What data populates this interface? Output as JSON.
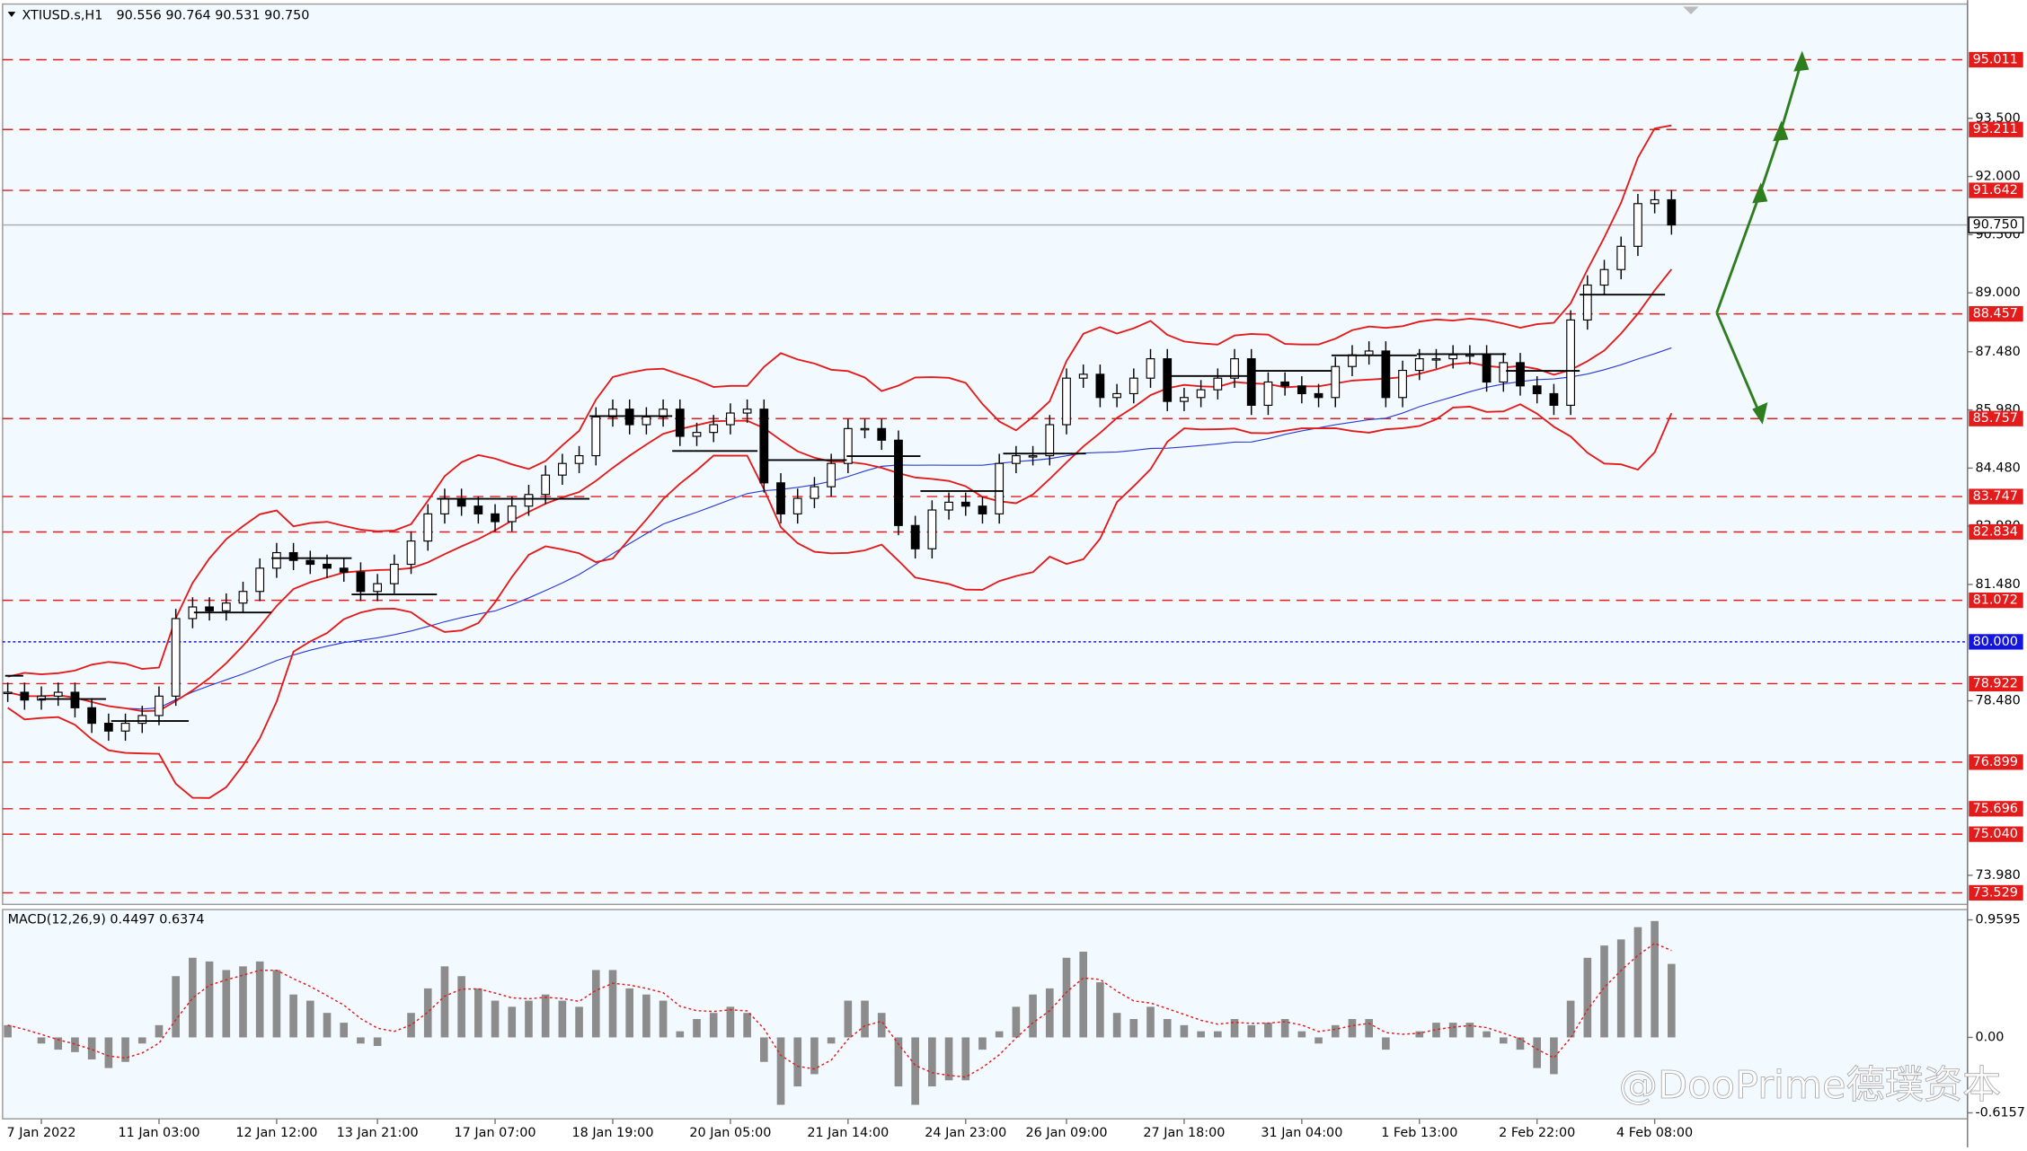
{
  "chart_data": {
    "type": "candlestick",
    "title": "XTIUSD.s,H1",
    "ohlc_label": "90.556 90.764 90.531 90.750",
    "categories": [
      null,
      null,
      "7 Jan 2022",
      null,
      null,
      null,
      null,
      null,
      null,
      "11 Jan 03:00",
      null,
      null,
      null,
      null,
      null,
      null,
      "12 Jan 12:00",
      null,
      null,
      null,
      null,
      null,
      "13 Jan 21:00",
      null,
      null,
      null,
      null,
      null,
      null,
      "17 Jan 07:00",
      null,
      null,
      null,
      null,
      null,
      null,
      "18 Jan 19:00",
      null,
      null,
      null,
      null,
      null,
      null,
      "20 Jan 05:00",
      null,
      null,
      null,
      null,
      null,
      null,
      "21 Jan 14:00",
      null,
      null,
      null,
      null,
      null,
      null,
      "24 Jan 23:00",
      null,
      null,
      null,
      null,
      null,
      "26 Jan 09:00",
      null,
      null,
      null,
      null,
      null,
      null,
      "27 Jan 18:00",
      null,
      null,
      null,
      null,
      null,
      null,
      "31 Jan 04:00",
      null,
      null,
      null,
      null,
      null,
      null,
      "1 Feb 13:00",
      null,
      null,
      null,
      null,
      null,
      null,
      "2 Feb 22:00",
      null,
      null,
      null,
      null,
      null,
      null,
      "4 Feb 08:00",
      null
    ],
    "values": [
      78.7,
      78.5,
      78.6,
      78.7,
      78.3,
      77.9,
      77.7,
      77.9,
      78.1,
      78.6,
      80.6,
      80.9,
      80.8,
      81.0,
      81.3,
      81.9,
      82.3,
      82.1,
      82.0,
      81.9,
      81.8,
      81.3,
      81.5,
      82.0,
      82.6,
      83.3,
      83.7,
      83.5,
      83.3,
      83.1,
      83.5,
      83.8,
      84.3,
      84.6,
      84.8,
      85.8,
      86.0,
      85.6,
      85.8,
      86.0,
      85.3,
      85.4,
      85.6,
      85.9,
      86.0,
      84.1,
      83.3,
      83.7,
      84.0,
      84.6,
      85.5,
      85.5,
      85.2,
      83.0,
      82.4,
      83.4,
      83.6,
      83.5,
      83.3,
      84.6,
      84.8,
      84.8,
      85.6,
      86.8,
      86.9,
      86.3,
      86.4,
      86.8,
      87.3,
      86.2,
      86.3,
      86.5,
      86.8,
      87.3,
      86.1,
      86.7,
      86.6,
      86.4,
      86.3,
      87.1,
      87.4,
      87.5,
      86.3,
      87.0,
      87.3,
      87.3,
      87.4,
      87.4,
      86.7,
      87.2,
      86.6,
      86.4,
      86.1,
      88.3,
      89.2,
      89.6,
      90.2,
      91.3,
      91.4,
      90.75
    ],
    "ylim": [
      73.23,
      96.38
    ],
    "yticks": [
      {
        "value": 93.5,
        "label": "93.500"
      },
      {
        "value": 92.0,
        "label": "92.000"
      },
      {
        "value": 90.5,
        "label": "90.500"
      },
      {
        "value": 89.0,
        "label": "89.000"
      },
      {
        "value": 87.48,
        "label": "87.480"
      },
      {
        "value": 85.98,
        "label": "85.980"
      },
      {
        "value": 84.48,
        "label": "84.480"
      },
      {
        "value": 82.98,
        "label": "82.980"
      },
      {
        "value": 81.48,
        "label": "81.480"
      },
      {
        "value": 78.48,
        "label": "78.480"
      },
      {
        "value": 73.98,
        "label": "73.980"
      }
    ],
    "levels": [
      {
        "value": 95.011,
        "label": "95.011"
      },
      {
        "value": 93.211,
        "label": "93.211"
      },
      {
        "value": 91.642,
        "label": "91.642"
      },
      {
        "value": 88.457,
        "label": "88.457"
      },
      {
        "value": 85.757,
        "label": "85.757"
      },
      {
        "value": 83.747,
        "label": "83.747"
      },
      {
        "value": 82.834,
        "label": "82.834"
      },
      {
        "value": 81.072,
        "label": "81.072"
      },
      {
        "value": 78.922,
        "label": "78.922"
      },
      {
        "value": 76.899,
        "label": "76.899"
      },
      {
        "value": 75.696,
        "label": "75.696"
      },
      {
        "value": 75.04,
        "label": "75.040"
      },
      {
        "value": 73.529,
        "label": "73.529"
      }
    ],
    "level_color": "#e31b1b",
    "round_level": {
      "value": 80.0,
      "label": "80.000",
      "color": "#1515e0"
    },
    "last_price": {
      "value": 90.75,
      "label": "90.750"
    },
    "macd": {
      "title": "MACD(12,26,9) 0.4497 0.6374",
      "color": "#8c8c8c",
      "values": [
        0.1,
        0.0,
        -0.05,
        -0.1,
        -0.12,
        -0.18,
        -0.25,
        -0.2,
        -0.05,
        0.1,
        0.5,
        0.65,
        0.62,
        0.55,
        0.58,
        0.62,
        0.55,
        0.35,
        0.3,
        0.2,
        0.12,
        -0.05,
        -0.07,
        0.0,
        0.2,
        0.4,
        0.58,
        0.5,
        0.4,
        0.3,
        0.25,
        0.3,
        0.35,
        0.3,
        0.25,
        0.55,
        0.55,
        0.4,
        0.35,
        0.3,
        0.05,
        0.15,
        0.2,
        0.25,
        0.2,
        -0.2,
        -0.55,
        -0.4,
        -0.3,
        -0.05,
        0.3,
        0.3,
        0.2,
        -0.4,
        -0.55,
        -0.4,
        -0.35,
        -0.35,
        -0.1,
        0.05,
        0.25,
        0.35,
        0.4,
        0.65,
        0.7,
        0.45,
        0.2,
        0.15,
        0.25,
        0.15,
        0.1,
        0.05,
        0.05,
        0.15,
        0.1,
        0.12,
        0.15,
        0.05,
        -0.05,
        0.1,
        0.15,
        0.15,
        -0.1,
        0.0,
        0.05,
        0.12,
        0.12,
        0.12,
        0.05,
        -0.05,
        -0.1,
        -0.25,
        -0.3,
        0.3,
        0.65,
        0.75,
        0.8,
        0.9,
        0.95,
        0.6
      ],
      "ylim": [
        -0.654,
        1.033
      ],
      "yticks": [
        {
          "value": 0.9595,
          "label": "0.9595"
        },
        {
          "value": 0.0,
          "label": "0.00"
        },
        {
          "value": -0.6157,
          "label": "-0.6157"
        }
      ]
    },
    "watermark": "@DooPrime德璞资本"
  }
}
